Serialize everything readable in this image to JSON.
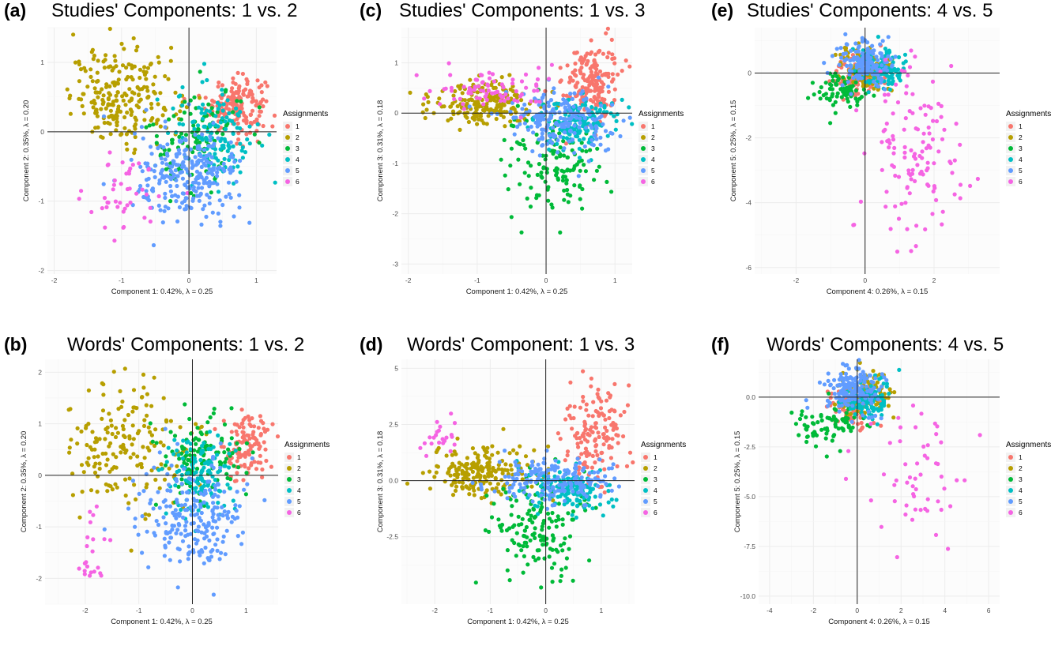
{
  "legend": {
    "title": "Assignments",
    "entries": [
      {
        "label": "1",
        "color": "#F8766D"
      },
      {
        "label": "2",
        "color": "#B79F00"
      },
      {
        "label": "3",
        "color": "#00BA38"
      },
      {
        "label": "4",
        "color": "#00BFC4"
      },
      {
        "label": "5",
        "color": "#619CFF"
      },
      {
        "label": "6",
        "color": "#F564E3"
      }
    ]
  },
  "chart_data": [
    {
      "panel": "(a)",
      "type": "scatter",
      "title": "Studies' Components: 1 vs. 2",
      "xlabel": "Component 1: 0.42%, λ = 0.25",
      "ylabel": "Component 2: 0.35%, λ = 0.20",
      "xlim": [
        -2.1,
        1.3
      ],
      "ylim": [
        -2.05,
        1.5
      ],
      "xticks": [
        "-2",
        "-1",
        "0",
        "1"
      ],
      "xtick_values": [
        -2,
        -1,
        0,
        1
      ],
      "yticks": [
        "-2",
        "-1",
        "0",
        "1"
      ],
      "ytick_values": [
        -2,
        -1,
        0,
        1
      ],
      "series": [
        {
          "name": "1",
          "center": [
            0.7,
            0.4
          ],
          "spread": [
            0.22,
            0.2
          ],
          "n": 170
        },
        {
          "name": "2",
          "center": [
            -0.95,
            0.5
          ],
          "spread": [
            0.4,
            0.33
          ],
          "n": 230
        },
        {
          "name": "3",
          "center": [
            0.1,
            -0.1
          ],
          "spread": [
            0.35,
            0.4
          ],
          "n": 110
        },
        {
          "name": "4",
          "center": [
            0.4,
            0.0
          ],
          "spread": [
            0.3,
            0.35
          ],
          "n": 130
        },
        {
          "name": "5",
          "center": [
            0.0,
            -0.65
          ],
          "spread": [
            0.4,
            0.33
          ],
          "n": 260
        },
        {
          "name": "6",
          "center": [
            -0.95,
            -0.9
          ],
          "spread": [
            0.35,
            0.3
          ],
          "n": 45
        }
      ],
      "grid": true,
      "grid_color": "#ebebeb",
      "grid_line_color": "#f4f4f4"
    },
    {
      "panel": "(c)",
      "type": "scatter",
      "title": "Studies' Components: 1 vs. 3",
      "xlabel": "Component 1: 0.42%, λ = 0.25",
      "ylabel": "Component 3: 0.31%, λ = 0.18",
      "xlim": [
        -2.1,
        1.25
      ],
      "ylim": [
        -3.2,
        1.7
      ],
      "xticks": [
        "-2",
        "-1",
        "0",
        "1"
      ],
      "xtick_values": [
        -2,
        -1,
        0,
        1
      ],
      "yticks": [
        "-3",
        "-2",
        "-1",
        "0",
        "1"
      ],
      "ytick_values": [
        -3,
        -2,
        -1,
        0,
        1
      ],
      "series": [
        {
          "name": "1",
          "center": [
            0.65,
            0.6
          ],
          "spread": [
            0.2,
            0.4
          ],
          "n": 190
        },
        {
          "name": "2",
          "center": [
            -0.9,
            0.2
          ],
          "spread": [
            0.4,
            0.22
          ],
          "n": 200
        },
        {
          "name": "3",
          "center": [
            0.05,
            -0.95
          ],
          "spread": [
            0.35,
            0.45
          ],
          "n": 140
        },
        {
          "name": "4",
          "center": [
            0.45,
            -0.2
          ],
          "spread": [
            0.3,
            0.25
          ],
          "n": 160
        },
        {
          "name": "5",
          "center": [
            0.2,
            -0.15
          ],
          "spread": [
            0.4,
            0.3
          ],
          "n": 190
        },
        {
          "name": "6",
          "center": [
            -0.8,
            0.45
          ],
          "spread": [
            0.45,
            0.2
          ],
          "n": 80
        }
      ],
      "grid": true
    },
    {
      "panel": "(e)",
      "type": "scatter",
      "title": "Studies' Components: 4 vs. 5",
      "xlabel": "Component 4: 0.26%, λ = 0.15",
      "ylabel": "Component 5: 0.25%, λ = 0.15",
      "xlim": [
        -3.2,
        3.9
      ],
      "ylim": [
        -6.2,
        1.4
      ],
      "xticks": [
        "-2",
        "0",
        "2"
      ],
      "xtick_values": [
        -2,
        0,
        2
      ],
      "yticks": [
        "-6",
        "-4",
        "-2",
        "0"
      ],
      "ytick_values": [
        -6,
        -4,
        -2,
        0
      ],
      "series": [
        {
          "name": "1",
          "center": [
            -0.2,
            -0.05
          ],
          "spread": [
            0.35,
            0.35
          ],
          "n": 120
        },
        {
          "name": "2",
          "center": [
            0.0,
            0.1
          ],
          "spread": [
            0.4,
            0.35
          ],
          "n": 100
        },
        {
          "name": "3",
          "center": [
            -0.6,
            -0.55
          ],
          "spread": [
            0.4,
            0.3
          ],
          "n": 80
        },
        {
          "name": "4",
          "center": [
            0.4,
            0.15
          ],
          "spread": [
            0.35,
            0.3
          ],
          "n": 130
        },
        {
          "name": "5",
          "center": [
            -0.05,
            0.3
          ],
          "spread": [
            0.4,
            0.35
          ],
          "n": 150
        },
        {
          "name": "6",
          "center": [
            1.3,
            -2.4
          ],
          "spread": [
            0.7,
            1.3
          ],
          "n": 130
        }
      ],
      "grid": true
    },
    {
      "panel": "(b)",
      "type": "scatter",
      "title": "Words' Components: 1 vs. 2",
      "xlabel": "Component 1: 0.42%, λ = 0.25",
      "ylabel": "Component 2: 0.35%, λ = 0.20",
      "xlim": [
        -2.75,
        1.6
      ],
      "ylim": [
        -2.5,
        2.25
      ],
      "xticks": [
        "-2",
        "-1",
        "0",
        "1"
      ],
      "xtick_values": [
        -2,
        -1,
        0,
        1
      ],
      "yticks": [
        "-2",
        "-1",
        "0",
        "1",
        "2"
      ],
      "ytick_values": [
        -2,
        -1,
        0,
        1,
        2
      ],
      "series": [
        {
          "name": "1",
          "center": [
            1.0,
            0.55
          ],
          "spread": [
            0.25,
            0.35
          ],
          "n": 120
        },
        {
          "name": "2",
          "center": [
            -1.2,
            0.55
          ],
          "spread": [
            0.55,
            0.6
          ],
          "n": 180
        },
        {
          "name": "3",
          "center": [
            0.2,
            0.3
          ],
          "spread": [
            0.4,
            0.45
          ],
          "n": 110
        },
        {
          "name": "4",
          "center": [
            0.1,
            0.0
          ],
          "spread": [
            0.3,
            0.4
          ],
          "n": 120
        },
        {
          "name": "5",
          "center": [
            -0.05,
            -0.85
          ],
          "spread": [
            0.5,
            0.55
          ],
          "n": 220
        },
        {
          "name": "6",
          "center": [
            -1.85,
            -1.5
          ],
          "spread": [
            0.2,
            0.4
          ],
          "n": 22
        }
      ],
      "grid": true
    },
    {
      "panel": "(d)",
      "type": "scatter",
      "title": "Words' Component: 1 vs. 3",
      "xlabel": "Component 1: 0.42%, λ = 0.25",
      "ylabel": "Component 3: 0.31%, λ = 0.18",
      "xlim": [
        -2.6,
        1.6
      ],
      "ylim": [
        -5.5,
        5.4
      ],
      "xticks": [
        "-2",
        "-1",
        "0",
        "1"
      ],
      "xtick_values": [
        -2,
        -1,
        0,
        1
      ],
      "yticks": [
        "-2.5",
        "0.0",
        "2.5",
        "5"
      ],
      "ytick_values": [
        -2.5,
        0,
        2.5,
        5
      ],
      "series": [
        {
          "name": "1",
          "center": [
            0.9,
            2.2
          ],
          "spread": [
            0.3,
            1.3
          ],
          "n": 160
        },
        {
          "name": "2",
          "center": [
            -1.2,
            0.4
          ],
          "spread": [
            0.45,
            0.6
          ],
          "n": 200
        },
        {
          "name": "3",
          "center": [
            -0.15,
            -2.0
          ],
          "spread": [
            0.45,
            1.1
          ],
          "n": 160
        },
        {
          "name": "4",
          "center": [
            0.35,
            -0.4
          ],
          "spread": [
            0.35,
            0.5
          ],
          "n": 150
        },
        {
          "name": "5",
          "center": [
            0.1,
            0.0
          ],
          "spread": [
            0.5,
            0.55
          ],
          "n": 180
        },
        {
          "name": "6",
          "center": [
            -1.9,
            2.0
          ],
          "spread": [
            0.2,
            0.5
          ],
          "n": 22
        }
      ],
      "grid": true
    },
    {
      "panel": "(f)",
      "type": "scatter",
      "title": "Words' Components: 4 vs. 5",
      "xlabel": "Component 4: 0.26%, λ = 0.15",
      "ylabel": "Component 5: 0.25%, λ = 0.15",
      "xlim": [
        -4.5,
        6.5
      ],
      "ylim": [
        -10.4,
        1.9
      ],
      "xticks": [
        "-4",
        "-2",
        "0",
        "2",
        "4",
        "6"
      ],
      "xtick_values": [
        -4,
        -2,
        0,
        2,
        4,
        6
      ],
      "yticks": [
        "-10.0",
        "-7.5",
        "-5.0",
        "-2.5",
        "0.0"
      ],
      "ytick_values": [
        -10,
        -7.5,
        -5,
        -2.5,
        0
      ],
      "series": [
        {
          "name": "1",
          "center": [
            -0.3,
            -0.4
          ],
          "spread": [
            0.55,
            0.55
          ],
          "n": 100
        },
        {
          "name": "2",
          "center": [
            0.3,
            0.2
          ],
          "spread": [
            0.6,
            0.55
          ],
          "n": 90
        },
        {
          "name": "3",
          "center": [
            -1.3,
            -1.2
          ],
          "spread": [
            0.9,
            0.5
          ],
          "n": 80
        },
        {
          "name": "4",
          "center": [
            0.5,
            0.0
          ],
          "spread": [
            0.5,
            0.5
          ],
          "n": 110
        },
        {
          "name": "5",
          "center": [
            -0.2,
            0.4
          ],
          "spread": [
            0.6,
            0.6
          ],
          "n": 160
        },
        {
          "name": "6",
          "center": [
            2.5,
            -3.8
          ],
          "spread": [
            1.3,
            2.0
          ],
          "n": 55
        }
      ],
      "grid": true
    }
  ]
}
